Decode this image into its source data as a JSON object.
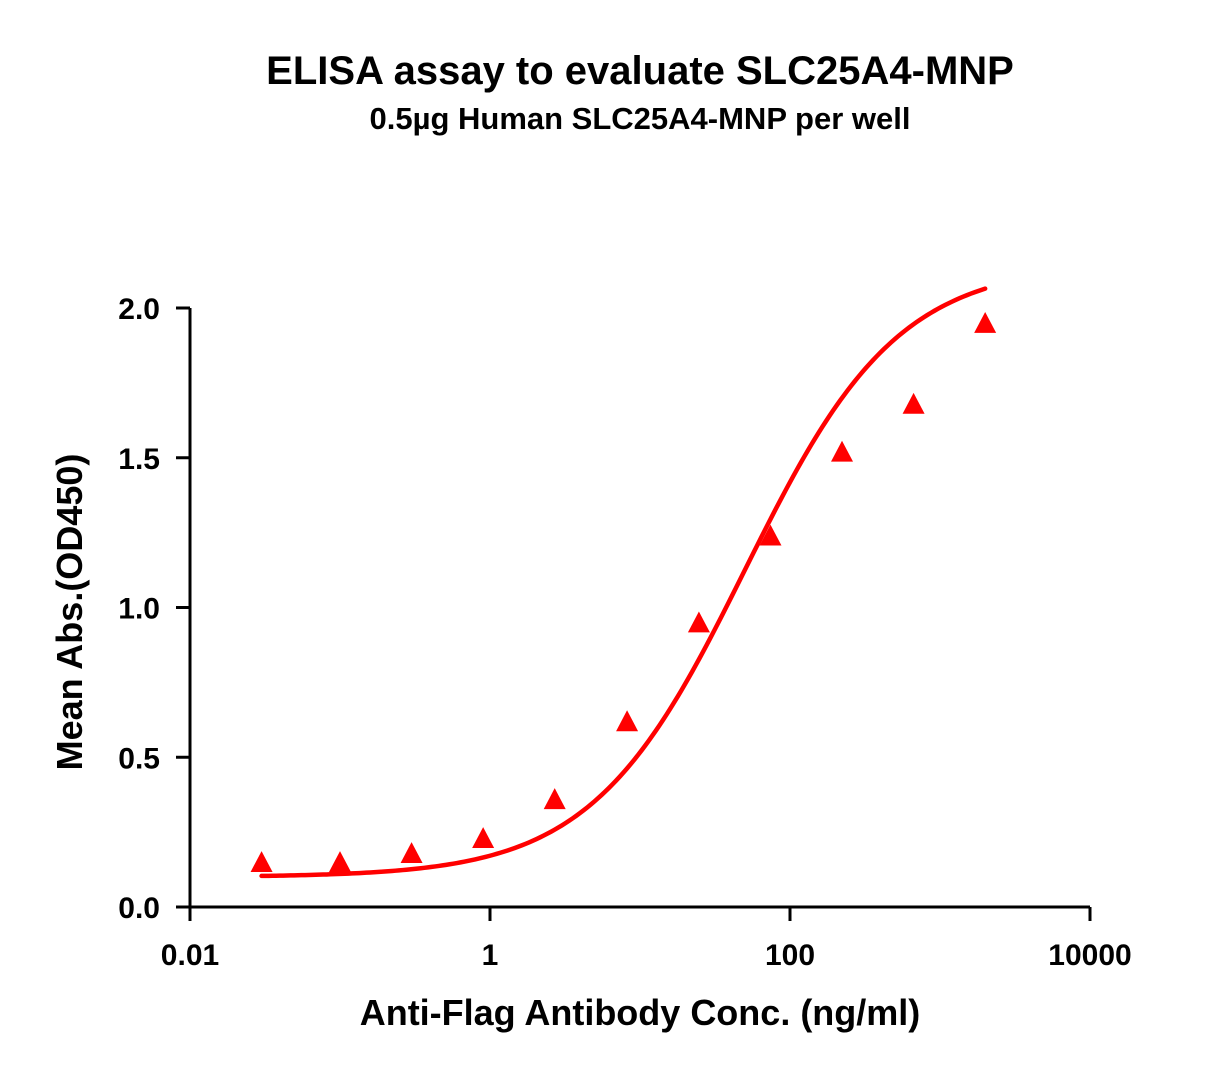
{
  "chart_data": {
    "type": "scatter",
    "title": "ELISA assay to evaluate SLC25A4-MNP",
    "subtitle": "0.5µg Human SLC25A4-MNP per well",
    "xlabel": "Anti-Flag Antibody Conc. (ng/ml)",
    "ylabel": "Mean Abs.(OD450)",
    "x_scale": "log",
    "xlim": [
      0.01,
      10000
    ],
    "ylim": [
      0.0,
      2.0
    ],
    "x_ticks": [
      "0.01",
      "1",
      "100",
      "10000"
    ],
    "x_tick_values": [
      0.01,
      1,
      100,
      10000
    ],
    "y_ticks": [
      "0.0",
      "0.5",
      "1.0",
      "1.5",
      "2.0"
    ],
    "y_tick_values": [
      0.0,
      0.5,
      1.0,
      1.5,
      2.0
    ],
    "grid": false,
    "marker": "triangle",
    "color": "#ff0000",
    "series": [
      {
        "x": [
          0.03,
          0.1,
          0.3,
          0.9,
          2.7,
          8.2,
          24.7,
          74.1,
          222.2,
          666.7,
          2000
        ],
        "y": [
          0.15,
          0.15,
          0.18,
          0.23,
          0.36,
          0.62,
          0.95,
          1.24,
          1.52,
          1.68,
          1.95
        ]
      }
    ],
    "fit_curve": {
      "type": "4PL",
      "bottom": 0.1,
      "top": 2.15,
      "ec50": 50,
      "hill": 0.85,
      "x_range": [
        0.03,
        2000
      ]
    }
  }
}
